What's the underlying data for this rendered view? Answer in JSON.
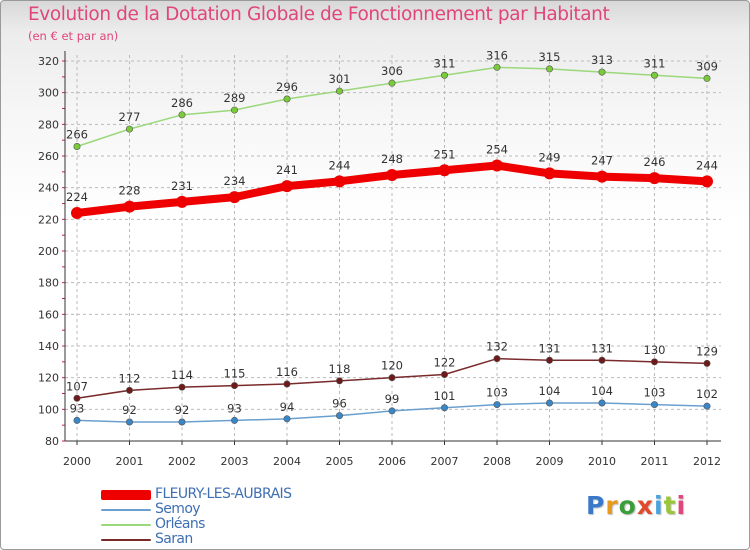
{
  "title": "Evolution de la Dotation Globale de Fonctionnement par Habitant",
  "subtitle": "(en € et par an)",
  "brand": {
    "name": "Proxiti",
    "letter_colors": [
      "#3a78c8",
      "#e79a1e",
      "#3a9f3a",
      "#e04a2a",
      "#4aa3e0",
      "#9bc63a",
      "#e0457b"
    ]
  },
  "colors": {
    "title": "#e0457b",
    "axis": "#333333",
    "grid": "#bbbbbb",
    "axis_ticks": "#cc2255",
    "legend_text": "#3f6fb3"
  },
  "chart_data": {
    "type": "line",
    "title": "Evolution de la Dotation Globale de Fonctionnement par Habitant",
    "subtitle": "(en € et par an)",
    "xlabel": "",
    "ylabel": "",
    "x": [
      "2000",
      "2001",
      "2002",
      "2003",
      "2004",
      "2005",
      "2006",
      "2007",
      "2008",
      "2009",
      "2010",
      "2011",
      "2012"
    ],
    "ylim": [
      80,
      320
    ],
    "yticks": [
      "80",
      "100",
      "120",
      "140",
      "160",
      "180",
      "200",
      "220",
      "240",
      "260",
      "280",
      "300",
      "320"
    ],
    "grid": "horizontal-dashed",
    "legend_position": "bottom-left",
    "series": [
      {
        "name": "FLEURY-LES-AUBRAIS",
        "color": "#ee0000",
        "marker": "#ee0000",
        "width": 8,
        "labels": [
          "224",
          "228",
          "231",
          "234",
          "241",
          "244",
          "248",
          "251",
          "254",
          "249",
          "247",
          "246",
          "244"
        ],
        "values": [
          224,
          228,
          231,
          234,
          241,
          244,
          248,
          251,
          254,
          249,
          247,
          246,
          244
        ]
      },
      {
        "name": "Semoy",
        "color": "#6a9fd0",
        "marker": "#3a87c8",
        "width": 1.5,
        "labels": [
          "93",
          "92",
          "92",
          "93",
          "94",
          "96",
          "99",
          "101",
          "103",
          "104",
          "104",
          "103",
          "102"
        ],
        "values": [
          93,
          92,
          92,
          93,
          94,
          96,
          99,
          101,
          103,
          104,
          104,
          103,
          102
        ]
      },
      {
        "name": "Orléans",
        "color": "#9bd87a",
        "marker": "#7acb3a",
        "width": 1.5,
        "labels": [
          "266",
          "277",
          "286",
          "289",
          "296",
          "301",
          "306",
          "311",
          "316",
          "315",
          "313",
          "311",
          "309"
        ],
        "values": [
          266,
          277,
          286,
          289,
          296,
          301,
          306,
          311,
          316,
          315,
          313,
          311,
          309
        ]
      },
      {
        "name": "Saran",
        "color": "#7a2a2a",
        "marker": "#6e1a1a",
        "width": 1.5,
        "labels": [
          "107",
          "112",
          "114",
          "115",
          "116",
          "118",
          "120",
          "122",
          "132",
          "131",
          "131",
          "130",
          "129"
        ],
        "values": [
          107,
          112,
          114,
          115,
          116,
          118,
          120,
          122,
          132,
          131,
          131,
          130,
          129
        ]
      }
    ]
  }
}
